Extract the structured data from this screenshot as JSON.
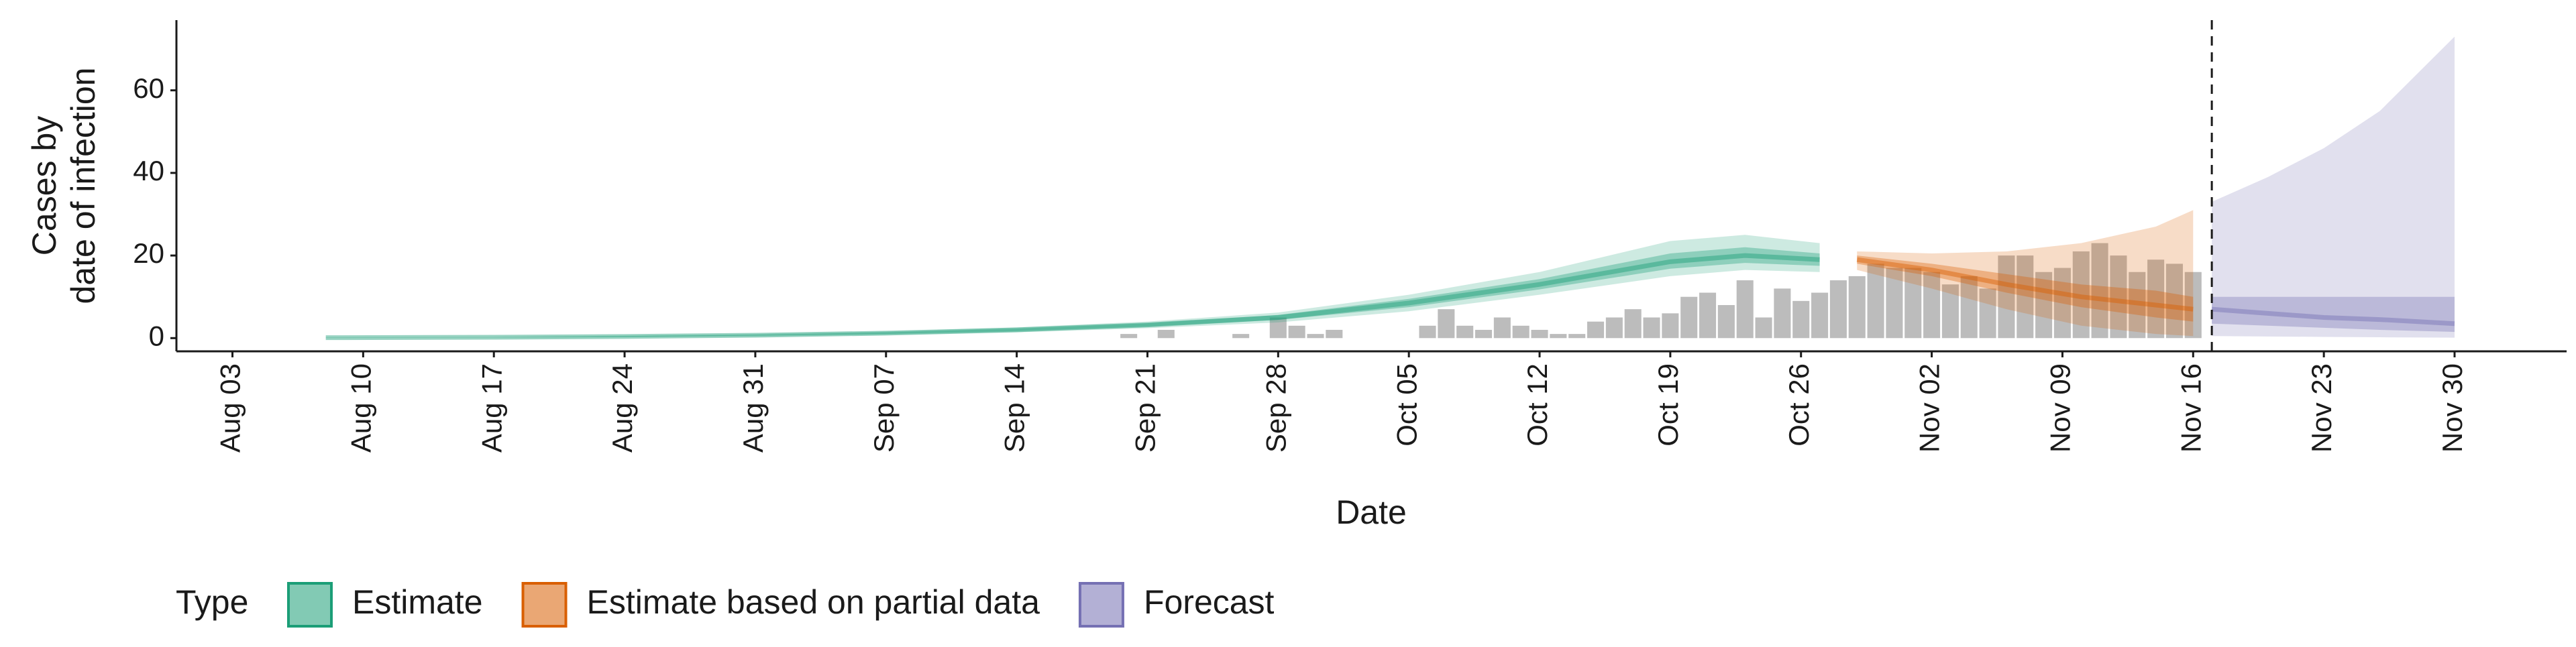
{
  "chart_data": {
    "type": "nowcast",
    "y_label": [
      "Cases by",
      "date of infection"
    ],
    "x_label": "Date",
    "legend_title": "Type",
    "xlim": [
      "Jul 31",
      "Dec 06"
    ],
    "ylim": [
      -3.2,
      77
    ],
    "xticks": [
      "Aug 03",
      "Aug 10",
      "Aug 17",
      "Aug 24",
      "Aug 31",
      "Sep 07",
      "Sep 14",
      "Sep 21",
      "Sep 28",
      "Oct 05",
      "Oct 12",
      "Oct 19",
      "Oct 26",
      "Nov 02",
      "Nov 09",
      "Nov 16",
      "Nov 23",
      "Nov 30"
    ],
    "yticks": [
      0,
      20,
      40,
      60
    ],
    "vline": "Nov 17",
    "bars": {
      "color": "#a6a6a6",
      "x": [
        "Sep 20",
        "Sep 22",
        "Sep 26",
        "Sep 28",
        "Sep 29",
        "Sep 30",
        "Oct 01",
        "Oct 06",
        "Oct 07",
        "Oct 08",
        "Oct 09",
        "Oct 10",
        "Oct 11",
        "Oct 12",
        "Oct 13",
        "Oct 14",
        "Oct 15",
        "Oct 16",
        "Oct 17",
        "Oct 18",
        "Oct 19",
        "Oct 20",
        "Oct 21",
        "Oct 22",
        "Oct 23",
        "Oct 24",
        "Oct 25",
        "Oct 26",
        "Oct 27",
        "Oct 28",
        "Oct 29",
        "Oct 30",
        "Oct 31",
        "Nov 01",
        "Nov 02",
        "Nov 03",
        "Nov 04",
        "Nov 05",
        "Nov 06",
        "Nov 07",
        "Nov 08",
        "Nov 09",
        "Nov 10",
        "Nov 11",
        "Nov 12",
        "Nov 13",
        "Nov 14",
        "Nov 15",
        "Nov 16"
      ],
      "values": [
        1,
        2,
        1,
        5,
        3,
        1,
        2,
        3,
        7,
        3,
        2,
        5,
        3,
        2,
        1,
        1,
        4,
        5,
        7,
        5,
        6,
        10,
        11,
        8,
        14,
        5,
        12,
        9,
        11,
        14,
        15,
        18,
        17,
        17,
        16,
        13,
        15,
        12,
        20,
        20,
        16,
        17,
        21,
        23,
        20,
        16,
        19,
        18,
        16
      ]
    },
    "series": [
      {
        "name": "Estimate",
        "color": "#1b9e77",
        "x": [
          "Aug 08",
          "Aug 17",
          "Aug 24",
          "Aug 31",
          "Sep 07",
          "Sep 14",
          "Sep 21",
          "Sep 28",
          "Oct 05",
          "Oct 12",
          "Oct 19",
          "Oct 23",
          "Oct 27"
        ],
        "median": [
          0.1,
          0.2,
          0.4,
          0.7,
          1.2,
          2,
          3.2,
          5,
          8.5,
          13,
          18.5,
          20,
          19
        ],
        "lower_90": [
          0,
          0.1,
          0.2,
          0.4,
          0.8,
          1.4,
          2.4,
          3.8,
          6.5,
          10.5,
          15,
          16.5,
          16
        ],
        "upper_90": [
          0.2,
          0.3,
          0.6,
          1,
          1.6,
          2.6,
          4,
          6.2,
          10.5,
          16,
          23.5,
          25,
          23
        ],
        "lower_50": [
          0.1,
          0.2,
          0.3,
          0.6,
          1,
          1.7,
          2.8,
          4.4,
          7.5,
          11.8,
          16.8,
          18.2,
          17.5
        ],
        "upper_50": [
          0.1,
          0.2,
          0.5,
          0.8,
          1.4,
          2.3,
          3.6,
          5.6,
          9.5,
          14.3,
          20.5,
          22,
          20.5
        ]
      },
      {
        "name": "Estimate based on partial data",
        "color": "#d95f02",
        "x": [
          "Oct 29",
          "Nov 02",
          "Nov 06",
          "Nov 10",
          "Nov 14",
          "Nov 16"
        ],
        "median": [
          19,
          16.5,
          13,
          10,
          8,
          7
        ],
        "lower_90": [
          16.5,
          12,
          7,
          3,
          1,
          0.5
        ],
        "upper_90": [
          21,
          20.5,
          21,
          23,
          27,
          31
        ],
        "lower_50": [
          18,
          15,
          11,
          7.5,
          5,
          4
        ],
        "upper_50": [
          20,
          18,
          15.5,
          13,
          11.5,
          10
        ]
      },
      {
        "name": "Forecast",
        "color": "#7570b3",
        "x": [
          "Nov 17",
          "Nov 20",
          "Nov 23",
          "Nov 26",
          "Nov 30"
        ],
        "median": [
          7,
          6,
          5,
          4.5,
          3.5
        ],
        "lower_90": [
          0.5,
          0.4,
          0.3,
          0.2,
          0.1
        ],
        "upper_90": [
          33,
          39,
          46,
          55,
          73
        ],
        "lower_50": [
          3.5,
          3,
          2.5,
          2,
          1.5
        ],
        "upper_50": [
          10,
          10,
          10,
          10,
          10
        ]
      }
    ]
  }
}
